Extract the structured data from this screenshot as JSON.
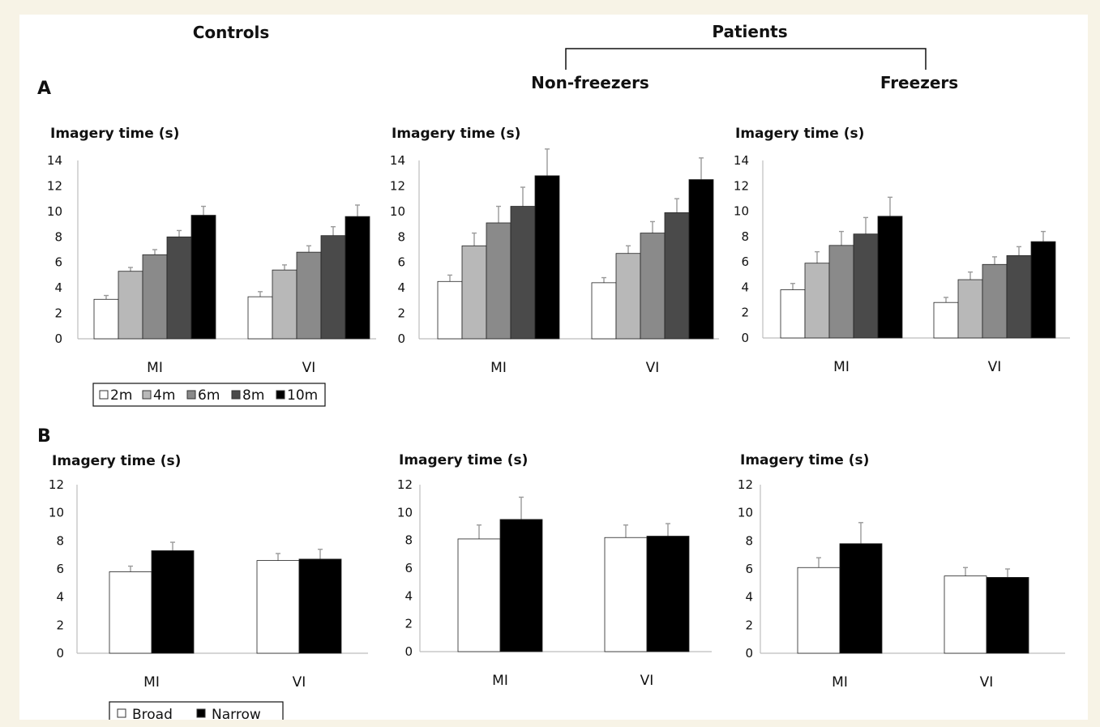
{
  "headers": {
    "controls": "Controls",
    "patients": "Patients",
    "non_freezers": "Non-freezers",
    "freezers": "Freezers"
  },
  "panel_labels": {
    "a": "A",
    "b": "B"
  },
  "legend_a": [
    {
      "label": "2m",
      "color": "#ffffff"
    },
    {
      "label": "4m",
      "color": "#b8b8b8"
    },
    {
      "label": "6m",
      "color": "#8a8a8a"
    },
    {
      "label": "8m",
      "color": "#4a4a4a"
    },
    {
      "label": "10m",
      "color": "#000000"
    }
  ],
  "legend_b": [
    {
      "label": "Broad",
      "color": "#ffffff"
    },
    {
      "label": "Narrow",
      "color": "#000000"
    }
  ],
  "chart_data": [
    {
      "type": "bar",
      "group": "Controls",
      "row": "A",
      "ylabel": "Imagery time (s)",
      "ylim": [
        0,
        14
      ],
      "yticks": [
        0,
        2,
        4,
        6,
        8,
        10,
        12,
        14
      ],
      "categories": [
        "MI",
        "VI"
      ],
      "series": [
        {
          "name": "2m",
          "values": [
            3.1,
            3.3
          ],
          "error": [
            0.3,
            0.4
          ]
        },
        {
          "name": "4m",
          "values": [
            5.3,
            5.4
          ],
          "error": [
            0.3,
            0.4
          ]
        },
        {
          "name": "6m",
          "values": [
            6.6,
            6.8
          ],
          "error": [
            0.4,
            0.5
          ]
        },
        {
          "name": "8m",
          "values": [
            8.0,
            8.1
          ],
          "error": [
            0.5,
            0.7
          ]
        },
        {
          "name": "10m",
          "values": [
            9.7,
            9.6
          ],
          "error": [
            0.7,
            0.9
          ]
        }
      ]
    },
    {
      "type": "bar",
      "group": "Non-freezers",
      "row": "A",
      "ylabel": "Imagery time (s)",
      "ylim": [
        0,
        14
      ],
      "yticks": [
        0,
        2,
        4,
        6,
        8,
        10,
        12,
        14
      ],
      "categories": [
        "MI",
        "VI"
      ],
      "series": [
        {
          "name": "2m",
          "values": [
            4.5,
            4.4
          ],
          "error": [
            0.5,
            0.4
          ]
        },
        {
          "name": "4m",
          "values": [
            7.3,
            6.7
          ],
          "error": [
            1.0,
            0.6
          ]
        },
        {
          "name": "6m",
          "values": [
            9.1,
            8.3
          ],
          "error": [
            1.3,
            0.9
          ]
        },
        {
          "name": "8m",
          "values": [
            10.4,
            9.9
          ],
          "error": [
            1.5,
            1.1
          ]
        },
        {
          "name": "10m",
          "values": [
            12.8,
            12.5
          ],
          "error": [
            2.1,
            1.7
          ]
        }
      ]
    },
    {
      "type": "bar",
      "group": "Freezers",
      "row": "A",
      "ylabel": "Imagery time (s)",
      "ylim": [
        0,
        14
      ],
      "yticks": [
        0,
        2,
        4,
        6,
        8,
        10,
        12,
        14
      ],
      "categories": [
        "MI",
        "VI"
      ],
      "series": [
        {
          "name": "2m",
          "values": [
            3.8,
            2.8
          ],
          "error": [
            0.5,
            0.4
          ]
        },
        {
          "name": "4m",
          "values": [
            5.9,
            4.6
          ],
          "error": [
            0.9,
            0.6
          ]
        },
        {
          "name": "6m",
          "values": [
            7.3,
            5.8
          ],
          "error": [
            1.1,
            0.6
          ]
        },
        {
          "name": "8m",
          "values": [
            8.2,
            6.5
          ],
          "error": [
            1.3,
            0.7
          ]
        },
        {
          "name": "10m",
          "values": [
            9.6,
            7.6
          ],
          "error": [
            1.5,
            0.8
          ]
        }
      ]
    },
    {
      "type": "bar",
      "group": "Controls",
      "row": "B",
      "ylabel": "Imagery time (s)",
      "ylim": [
        0,
        12
      ],
      "yticks": [
        0,
        2,
        4,
        6,
        8,
        10,
        12
      ],
      "categories": [
        "MI",
        "VI"
      ],
      "series": [
        {
          "name": "Broad",
          "values": [
            5.8,
            6.6
          ],
          "error": [
            0.4,
            0.5
          ]
        },
        {
          "name": "Narrow",
          "values": [
            7.3,
            6.7
          ],
          "error": [
            0.6,
            0.7
          ]
        }
      ]
    },
    {
      "type": "bar",
      "group": "Non-freezers",
      "row": "B",
      "ylabel": "Imagery time (s)",
      "ylim": [
        0,
        12
      ],
      "yticks": [
        0,
        2,
        4,
        6,
        8,
        10,
        12
      ],
      "categories": [
        "MI",
        "VI"
      ],
      "series": [
        {
          "name": "Broad",
          "values": [
            8.1,
            8.2
          ],
          "error": [
            1.0,
            0.9
          ]
        },
        {
          "name": "Narrow",
          "values": [
            9.5,
            8.3
          ],
          "error": [
            1.6,
            0.9
          ]
        }
      ]
    },
    {
      "type": "bar",
      "group": "Freezers",
      "row": "B",
      "ylabel": "Imagery time (s)",
      "ylim": [
        0,
        12
      ],
      "yticks": [
        0,
        2,
        4,
        6,
        8,
        10,
        12
      ],
      "categories": [
        "MI",
        "VI"
      ],
      "series": [
        {
          "name": "Broad",
          "values": [
            6.1,
            5.5
          ],
          "error": [
            0.7,
            0.6
          ]
        },
        {
          "name": "Narrow",
          "values": [
            7.8,
            5.4
          ],
          "error": [
            1.5,
            0.6
          ]
        }
      ]
    }
  ]
}
